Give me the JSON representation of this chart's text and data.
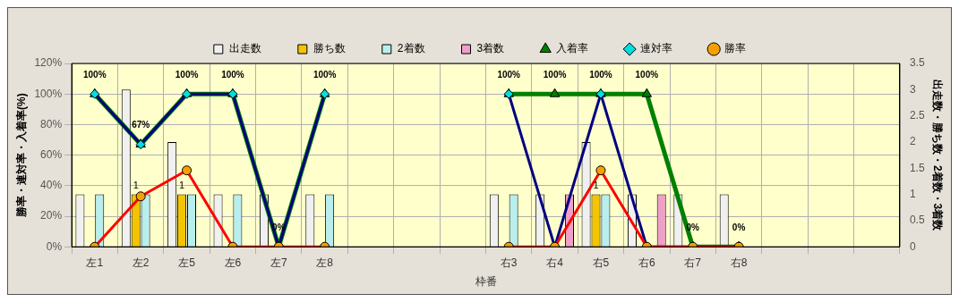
{
  "chart_data": {
    "type": "bar",
    "categories": [
      "左1",
      "左2",
      "左5",
      "左6",
      "左7",
      "左8",
      null,
      null,
      null,
      "右3",
      "右4",
      "右5",
      "右6",
      "右7",
      "右8",
      null,
      null,
      null
    ],
    "xlabel": "枠番",
    "ylabel": "勝率・連対率・入着率(%)",
    "y2label": "出走数・勝ち数・2着数・3着数",
    "ylim": [
      0,
      120
    ],
    "yticks": [
      {
        "value": 0,
        "label": "0%"
      },
      {
        "value": 20,
        "label": "20%"
      },
      {
        "value": 40,
        "label": "40%"
      },
      {
        "value": 60,
        "label": "60%"
      },
      {
        "value": 80,
        "label": "80%"
      },
      {
        "value": 100,
        "label": "100%"
      },
      {
        "value": 120,
        "label": "120%"
      }
    ],
    "y2lim": [
      0,
      3.5
    ],
    "y2ticks": [
      0,
      0.5,
      1,
      1.5,
      2,
      2.5,
      3,
      3.5
    ],
    "grid": true,
    "legend": "top",
    "series": [
      {
        "name": "出走数",
        "axis": "y2",
        "color": "#f0f0f0",
        "values": [
          1,
          3,
          2,
          1,
          1,
          1,
          null,
          null,
          null,
          1,
          1,
          2,
          1,
          1,
          1,
          null,
          null,
          null
        ]
      },
      {
        "name": "勝ち数",
        "axis": "y2",
        "color": "#f5c400",
        "values": [
          0,
          1,
          1,
          0,
          0,
          0,
          null,
          null,
          null,
          0,
          0,
          1,
          0,
          0,
          0,
          null,
          null,
          null
        ],
        "value_labels": [
          null,
          "1",
          "1",
          null,
          null,
          null,
          null,
          null,
          null,
          null,
          null,
          "1",
          null,
          null,
          null,
          null,
          null,
          null
        ]
      },
      {
        "name": "2着数",
        "axis": "y2",
        "color": "#b8eeee",
        "values": [
          1,
          1,
          1,
          1,
          0,
          1,
          null,
          null,
          null,
          1,
          0,
          1,
          0,
          0,
          0,
          null,
          null,
          null
        ]
      },
      {
        "name": "3着数",
        "axis": "y2",
        "color": "#f0a0c8",
        "values": [
          0,
          0,
          0,
          0,
          0,
          0,
          null,
          null,
          null,
          0,
          1,
          0,
          1,
          0,
          0,
          null,
          null,
          null
        ]
      },
      {
        "name": "入着率",
        "type": "line",
        "marker": "triangle",
        "color": "#008000",
        "values": [
          100,
          67,
          100,
          100,
          0,
          100,
          null,
          null,
          null,
          100,
          100,
          100,
          100,
          0,
          0,
          null,
          null,
          null
        ],
        "value_labels": [
          "100%",
          "67%",
          "100%",
          "100%",
          "0%",
          "100%",
          null,
          null,
          null,
          "100%",
          "100%",
          "100%",
          "100%",
          "0%",
          "0%",
          null,
          null,
          null
        ]
      },
      {
        "name": "連対率",
        "type": "line",
        "marker": "diamond",
        "color": "#000080",
        "values": [
          100,
          67,
          100,
          100,
          0,
          100,
          null,
          null,
          null,
          100,
          0,
          100,
          0,
          0,
          0,
          null,
          null,
          null
        ]
      },
      {
        "name": "勝率",
        "type": "line",
        "marker": "circle",
        "color": "#ff0000",
        "values": [
          0,
          33,
          50,
          0,
          0,
          0,
          null,
          null,
          null,
          0,
          0,
          50,
          0,
          0,
          0,
          null,
          null,
          null
        ]
      }
    ]
  }
}
